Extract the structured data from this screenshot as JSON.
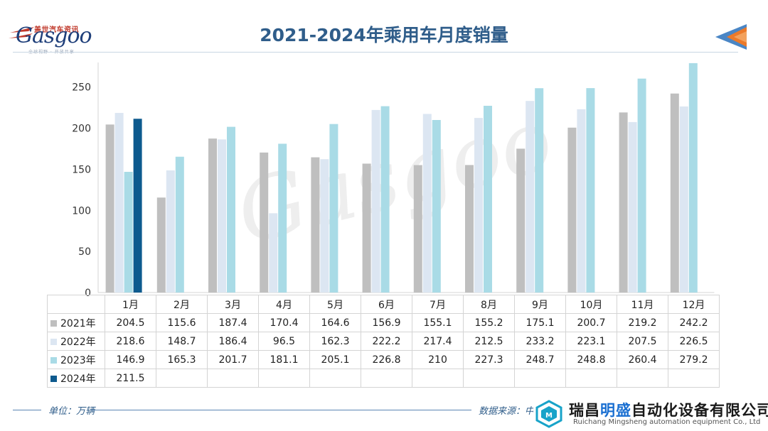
{
  "header": {
    "logo_cn": "盖世汽车资讯",
    "logo_en": "Gasgoo",
    "logo_tagline": "全球视野 · 开放共享",
    "title": "2021-2024年乘用车月度销量"
  },
  "colors": {
    "accent_blue": "#2f5d8a",
    "corner_orange": "#ec7a2a",
    "corner_blue": "#4a86c5"
  },
  "chart_data": {
    "type": "bar",
    "categories": [
      "1月",
      "2月",
      "3月",
      "4月",
      "5月",
      "6月",
      "7月",
      "8月",
      "9月",
      "10月",
      "11月",
      "12月"
    ],
    "series": [
      {
        "name": "2021年",
        "color": "#bfbfbf",
        "values": [
          204.5,
          115.6,
          187.4,
          170.4,
          164.6,
          156.9,
          155.1,
          155.2,
          175.1,
          200.7,
          219.2,
          242.2
        ]
      },
      {
        "name": "2022年",
        "color": "#dce6f2",
        "values": [
          218.6,
          148.7,
          186.4,
          96.5,
          162.3,
          222.2,
          217.4,
          212.5,
          233.2,
          223.1,
          207.5,
          226.5
        ]
      },
      {
        "name": "2023年",
        "color": "#a9dbe6",
        "values": [
          146.9,
          165.3,
          201.7,
          181.1,
          205.1,
          226.8,
          210,
          227.3,
          248.7,
          248.8,
          260.4,
          279.2
        ]
      },
      {
        "name": "2024年",
        "color": "#0d5a8e",
        "values": [
          211.5,
          null,
          null,
          null,
          null,
          null,
          null,
          null,
          null,
          null,
          null,
          null
        ]
      }
    ],
    "yticks": [
      0,
      50,
      100,
      150,
      200,
      250
    ],
    "ylim": [
      0,
      280
    ],
    "grid": false,
    "legend": "table-below"
  },
  "footer": {
    "unit": "单位：万辆",
    "source": "数据来源：中"
  },
  "overlay_watermark": {
    "name_cn_a": "瑞昌",
    "name_cn_b": "明盛",
    "name_cn_c": "自动化设备有限公司",
    "name_en": "Ruichang Mingsheng automation equipment Co., Ltd"
  }
}
